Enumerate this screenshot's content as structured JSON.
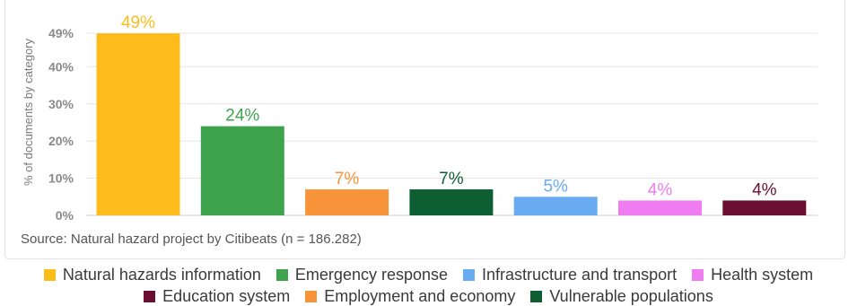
{
  "chart_data": {
    "type": "bar",
    "categories": [
      "Natural hazards information",
      "Emergency response",
      "Employment and economy",
      "Vulnerable populations",
      "Infrastructure and transport",
      "Health system",
      "Education system"
    ],
    "values": [
      49,
      24,
      7,
      7,
      5,
      4,
      4
    ],
    "value_labels": [
      "49%",
      "24%",
      "7%",
      "7%",
      "5%",
      "4%",
      "4%"
    ],
    "colors": [
      "#fbbc1c",
      "#3fa34d",
      "#f7943a",
      "#0e5e34",
      "#68abf0",
      "#ef7cf0",
      "#6a0f2f"
    ],
    "ylabel": "% of documents by category",
    "ylim": [
      0,
      50
    ],
    "yticks": [
      0,
      10,
      20,
      30,
      40,
      49
    ],
    "ytick_labels": [
      "0%",
      "10%",
      "20%",
      "30%",
      "40%",
      "49%"
    ],
    "grid": true,
    "legend_placement": "bottom",
    "source": "Source: Natural hazard project by Citibeats (n = 186.282)"
  },
  "legend": {
    "row1": [
      {
        "label": "Natural hazards information",
        "color": "#fbbc1c"
      },
      {
        "label": "Emergency response",
        "color": "#3fa34d"
      },
      {
        "label": "Infrastructure and transport",
        "color": "#68abf0"
      },
      {
        "label": "Health system",
        "color": "#ef7cf0"
      }
    ],
    "row2": [
      {
        "label": "Education system",
        "color": "#6a0f2f"
      },
      {
        "label": "Employment and economy",
        "color": "#f7943a"
      },
      {
        "label": "Vulnerable populations",
        "color": "#0e5e34"
      }
    ]
  }
}
